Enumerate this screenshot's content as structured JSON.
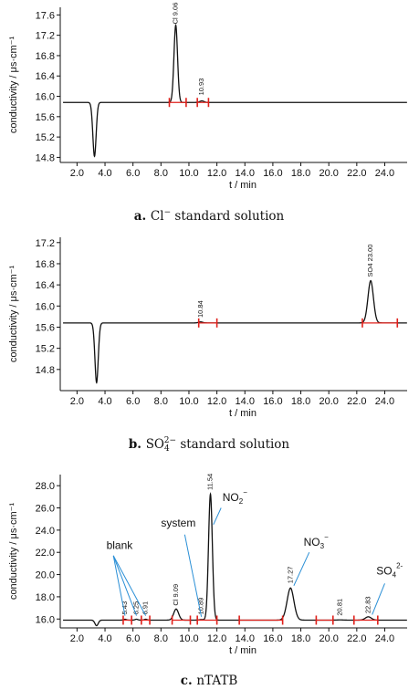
{
  "figure": {
    "charts": [
      {
        "caption_letter": "a.",
        "caption_text": "standard solution",
        "caption_ion": "Cl",
        "caption_charge": "−",
        "caption_sub": ""
      },
      {
        "caption_letter": "b.",
        "caption_text": "standard solution",
        "caption_ion": "SO",
        "caption_charge": "2−",
        "caption_sub": "4"
      },
      {
        "caption_letter": "c.",
        "caption_text": "nTATB",
        "caption_ion": "",
        "caption_charge": "",
        "caption_sub": ""
      }
    ]
  },
  "chart_data": [
    {
      "type": "line",
      "xlabel": "t / min",
      "ylabel": "conductivity / μs·cm⁻¹",
      "xlim": [
        0.8,
        25.6
      ],
      "ylim": [
        14.7,
        17.75
      ],
      "x_ticks": [
        "2.0",
        "4.0",
        "6.0",
        "8.0",
        "10.0",
        "12.0",
        "14.0",
        "16.0",
        "18.0",
        "20.0",
        "22.0",
        "24.0"
      ],
      "y_ticks": [
        "14.8",
        "15.2",
        "15.6",
        "16.0",
        "16.4",
        "16.8",
        "17.2",
        "17.6"
      ],
      "baseline": 15.88,
      "features": [
        {
          "x": 3.25,
          "height": -1.06,
          "width": 0.12
        },
        {
          "x": 9.06,
          "height": 1.52,
          "width": 0.13
        },
        {
          "x": 10.93,
          "height": 0.03,
          "width": 0.15
        }
      ],
      "peak_labels": [
        {
          "text": "Cl 9.06",
          "x": 9.06,
          "y": 17.42
        },
        {
          "text": "10.93",
          "x": 10.93,
          "y": 16.02
        }
      ],
      "integration_marks": [
        8.6,
        9.8,
        10.6,
        11.4
      ]
    },
    {
      "type": "line",
      "xlabel": "t / min",
      "ylabel": "conductivity / μs·cm⁻¹",
      "xlim": [
        0.8,
        25.6
      ],
      "ylim": [
        14.4,
        17.3
      ],
      "x_ticks": [
        "2.0",
        "4.0",
        "6.0",
        "8.0",
        "10.0",
        "12.0",
        "14.0",
        "16.0",
        "18.0",
        "20.0",
        "22.0",
        "24.0"
      ],
      "y_ticks": [
        "14.8",
        "15.2",
        "15.6",
        "16.0",
        "16.4",
        "16.8",
        "17.2"
      ],
      "baseline": 15.68,
      "features": [
        {
          "x": 3.4,
          "height": -1.13,
          "width": 0.12
        },
        {
          "x": 23.0,
          "height": 0.8,
          "width": 0.2
        },
        {
          "x": 10.84,
          "height": 0.02,
          "width": 0.15
        }
      ],
      "peak_labels": [
        {
          "text": "SO4 23.00",
          "x": 23.0,
          "y": 16.55
        },
        {
          "text": "10.84",
          "x": 10.84,
          "y": 15.78
        }
      ],
      "integration_marks": [
        10.7,
        12.0,
        22.4,
        24.9
      ]
    },
    {
      "type": "line",
      "xlabel": "t / min",
      "ylabel": "conductivity / μs·cm⁻¹",
      "xlim": [
        0.8,
        25.6
      ],
      "ylim": [
        15.2,
        29.0
      ],
      "x_ticks": [
        "2.0",
        "4.0",
        "6.0",
        "8.0",
        "10.0",
        "12.0",
        "14.0",
        "16.0",
        "18.0",
        "20.0",
        "22.0",
        "24.0"
      ],
      "y_ticks": [
        "16.0",
        "18.0",
        "20.0",
        "22.0",
        "24.0",
        "26.0",
        "28.0"
      ],
      "baseline": 15.9,
      "features": [
        {
          "x": 3.4,
          "height": -0.5,
          "width": 0.12
        },
        {
          "x": 5.43,
          "height": 0.08,
          "width": 0.1
        },
        {
          "x": 6.25,
          "height": 0.08,
          "width": 0.1
        },
        {
          "x": 6.91,
          "height": 0.08,
          "width": 0.1
        },
        {
          "x": 9.09,
          "height": 1.0,
          "width": 0.18
        },
        {
          "x": 10.89,
          "height": 0.05,
          "width": 0.15
        },
        {
          "x": 11.54,
          "height": 11.35,
          "width": 0.14
        },
        {
          "x": 17.27,
          "height": 2.9,
          "width": 0.25
        },
        {
          "x": 20.81,
          "height": 0.02,
          "width": 0.2
        },
        {
          "x": 22.83,
          "height": 0.3,
          "width": 0.22
        }
      ],
      "peak_labels": [
        {
          "text": "5.43",
          "x": 5.43,
          "y": 16.4
        },
        {
          "text": "6.25",
          "x": 6.25,
          "y": 16.4
        },
        {
          "text": "6.91",
          "x": 6.91,
          "y": 16.4
        },
        {
          "text": "Cl 9.09",
          "x": 9.09,
          "y": 17.2
        },
        {
          "text": "10.89",
          "x": 10.89,
          "y": 16.4
        },
        {
          "text": "11.54",
          "x": 11.54,
          "y": 27.6
        },
        {
          "text": "17.27",
          "x": 17.27,
          "y": 19.2
        },
        {
          "text": "20.81",
          "x": 20.81,
          "y": 16.3
        },
        {
          "text": "22.83",
          "x": 22.83,
          "y": 16.5
        }
      ],
      "integration_marks": [
        5.3,
        5.9,
        6.6,
        7.2,
        8.8,
        10.1,
        10.6,
        12.0,
        13.6,
        16.7,
        19.1,
        20.3,
        21.8,
        23.5
      ],
      "annotations": [
        {
          "text": "blank",
          "x": 4.1,
          "y": 22.3
        },
        {
          "text": "system",
          "x": 8.0,
          "y": 24.3
        },
        {
          "text": "NO",
          "x": 12.4,
          "y": 26.6,
          "sub": "2",
          "sup": "−"
        },
        {
          "text": "NO",
          "x": 18.2,
          "y": 22.6,
          "sub": "3",
          "sup": "−"
        },
        {
          "text": "SO",
          "x": 23.4,
          "y": 20.0,
          "sub": "4",
          "sup": "2-"
        }
      ]
    }
  ]
}
